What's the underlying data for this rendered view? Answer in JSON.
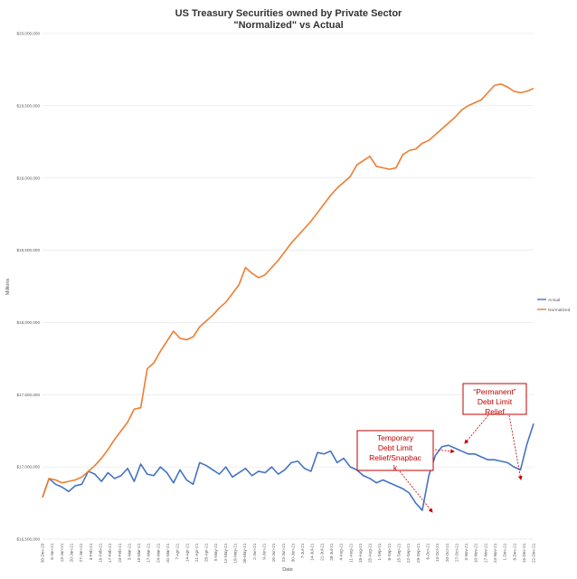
{
  "chart_data": {
    "type": "line",
    "title": "US Treasury Securities owned by Private Sector",
    "subtitle": "\"Normalized\" vs Actual",
    "xlabel": "Date",
    "ylabel": "Millions",
    "ylim": [
      16500000,
      20000000
    ],
    "yticks": [
      16500000,
      17000000,
      17500000,
      18000000,
      18500000,
      19000000,
      19500000,
      20000000
    ],
    "ytick_labels": [
      "$16,500,000",
      "$17,000,000",
      "$17,500,000",
      "$18,000,000",
      "$18,500,000",
      "$19,000,000",
      "$19,500,000",
      "$20,000,000"
    ],
    "xtick_labels": [
      "30-Dec-20",
      "6-Jan-21",
      "13-Jan-21",
      "20-Jan-21",
      "27-Jan-21",
      "3-Feb-21",
      "10-Feb-21",
      "17-Feb-21",
      "24-Feb-21",
      "3-Mar-21",
      "10-Mar-21",
      "17-Mar-21",
      "24-Mar-21",
      "31-Mar-21",
      "7-Apr-21",
      "14-Apr-21",
      "21-Apr-21",
      "28-Apr-21",
      "5-May-21",
      "12-May-21",
      "19-May-21",
      "26-May-21",
      "2-Jun-21",
      "9-Jun-21",
      "16-Jun-21",
      "23-Jun-21",
      "30-Jun-21",
      "7-Jul-21",
      "14-Jul-21",
      "21-Jul-21",
      "28-Jul-21",
      "4-Aug-21",
      "11-Aug-21",
      "18-Aug-21",
      "25-Aug-21",
      "1-Sep-21",
      "8-Sep-21",
      "15-Sep-21",
      "22-Sep-21",
      "29-Sep-21",
      "6-Oct-21",
      "13-Oct-21",
      "20-Oct-21",
      "27-Oct-21",
      "3-Nov-21",
      "10-Nov-21",
      "17-Nov-21",
      "24-Nov-21",
      "1-Dec-21",
      "8-Dec-21",
      "15-Dec-21",
      "22-Dec-21"
    ],
    "grid": true,
    "legend_position": "right",
    "series": [
      {
        "name": "Actual",
        "color": "#4472c4",
        "values": [
          16790000,
          16920000,
          16880000,
          16860000,
          16830000,
          16870000,
          16880000,
          16970000,
          16950000,
          16900000,
          16960000,
          16920000,
          16940000,
          16990000,
          16900000,
          17020000,
          16950000,
          16940000,
          17000000,
          16960000,
          16890000,
          16980000,
          16910000,
          16880000,
          17030000,
          17010000,
          16980000,
          16950000,
          17000000,
          16930000,
          16960000,
          16990000,
          16940000,
          16970000,
          16960000,
          17000000,
          16950000,
          16980000,
          17030000,
          17040000,
          16990000,
          16970000,
          17100000,
          17090000,
          17110000,
          17030000,
          17060000,
          17000000,
          16980000,
          16940000,
          16920000,
          16890000,
          16910000,
          16890000,
          16870000,
          16850000,
          16820000,
          16750000,
          16700000,
          16940000,
          17080000,
          17140000,
          17150000,
          17130000,
          17110000,
          17090000,
          17090000,
          17070000,
          17050000,
          17050000,
          17040000,
          17030000,
          17000000,
          16980000,
          17160000,
          17300000
        ]
      },
      {
        "name": "Normalized",
        "color": "#ed7d31",
        "values": [
          16790000,
          16920000,
          16910000,
          16890000,
          16900000,
          16910000,
          16930000,
          16970000,
          17010000,
          17060000,
          17120000,
          17190000,
          17250000,
          17310000,
          17400000,
          17410000,
          17680000,
          17720000,
          17800000,
          17870000,
          17940000,
          17890000,
          17880000,
          17900000,
          17970000,
          18010000,
          18050000,
          18100000,
          18140000,
          18200000,
          18260000,
          18380000,
          18340000,
          18310000,
          18330000,
          18380000,
          18430000,
          18490000,
          18550000,
          18600000,
          18650000,
          18700000,
          18760000,
          18820000,
          18880000,
          18930000,
          18970000,
          19010000,
          19090000,
          19120000,
          19150000,
          19080000,
          19070000,
          19060000,
          19070000,
          19160000,
          19190000,
          19200000,
          19240000,
          19260000,
          19300000,
          19340000,
          19380000,
          19420000,
          19470000,
          19500000,
          19520000,
          19540000,
          19590000,
          19640000,
          19650000,
          19630000,
          19600000,
          19590000,
          19600000,
          19620000
        ]
      }
    ],
    "annotations": [
      {
        "lines": [
          "Temporary",
          "Debt Limit",
          "Relief/Snapbac",
          "k"
        ]
      },
      {
        "lines": [
          "“Permanent”",
          "Debt Limit",
          "Relief"
        ]
      }
    ]
  }
}
